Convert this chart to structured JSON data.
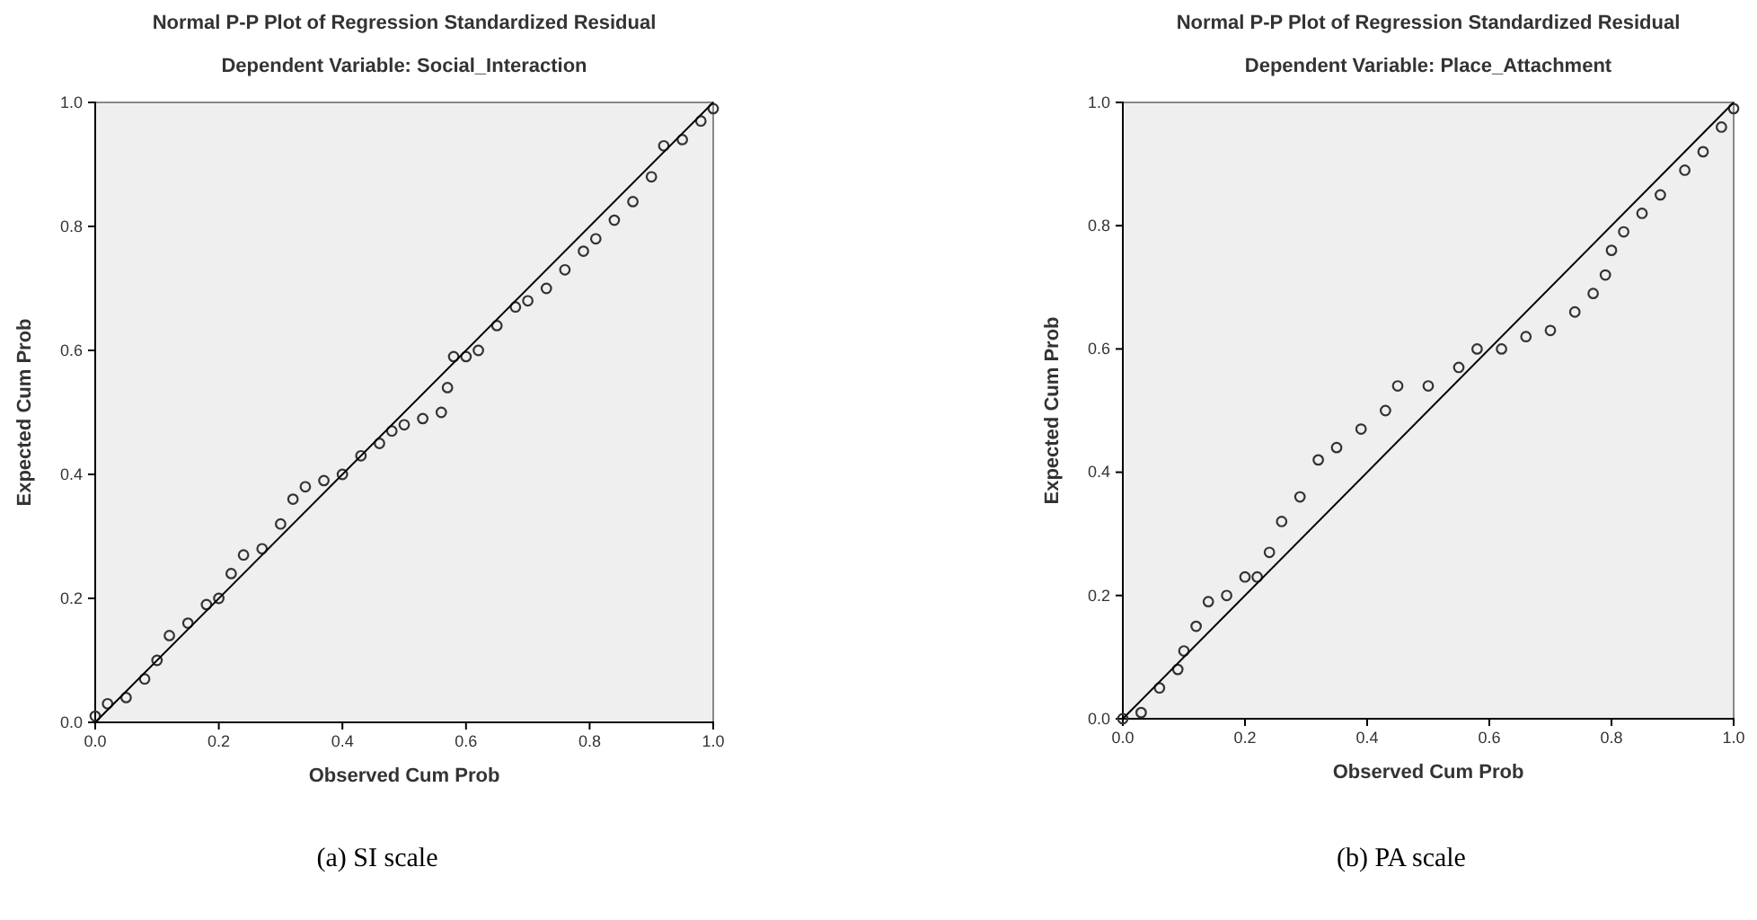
{
  "chart_data": [
    {
      "type": "scatter",
      "title": "Normal P-P Plot of Regression Standardized Residual",
      "subtitle": "Dependent Variable: Social_Interaction",
      "xlabel": "Observed Cum Prob",
      "ylabel": "Expected Cum Prob",
      "annotations": [
        "(a) SI scale"
      ],
      "xlim": [
        0,
        1
      ],
      "ylim": [
        0,
        1
      ],
      "xticks": [
        {
          "value": 0,
          "label": "0.0"
        },
        {
          "value": 0.2,
          "label": "0.2"
        },
        {
          "value": 0.4,
          "label": "0.4"
        },
        {
          "value": 0.6,
          "label": "0.6"
        },
        {
          "value": 0.8,
          "label": "0.8"
        },
        {
          "value": 1,
          "label": "1.0"
        }
      ],
      "yticks": [
        {
          "value": 0,
          "label": "0.0"
        },
        {
          "value": 0.2,
          "label": "0.2"
        },
        {
          "value": 0.4,
          "label": "0.4"
        },
        {
          "value": 0.6,
          "label": "0.6"
        },
        {
          "value": 0.8,
          "label": "0.8"
        },
        {
          "value": 1,
          "label": "1.0"
        }
      ],
      "series": [
        {
          "color": "#333333",
          "marker": "circle",
          "x": [
            0,
            0.02,
            0.05,
            0.08,
            0.1,
            0.12,
            0.15,
            0.18,
            0.2,
            0.22,
            0.24,
            0.27,
            0.3,
            0.32,
            0.34,
            0.37,
            0.4,
            0.43,
            0.46,
            0.48,
            0.5,
            0.53,
            0.56,
            0.57,
            0.58,
            0.6,
            0.62,
            0.65,
            0.68,
            0.7,
            0.73,
            0.76,
            0.79,
            0.81,
            0.84,
            0.87,
            0.9,
            0.92,
            0.95,
            0.98,
            1
          ],
          "values": [
            0.01,
            0.03,
            0.04,
            0.07,
            0.1,
            0.14,
            0.16,
            0.19,
            0.2,
            0.24,
            0.27,
            0.28,
            0.32,
            0.36,
            0.38,
            0.39,
            0.4,
            0.43,
            0.45,
            0.47,
            0.48,
            0.49,
            0.5,
            0.54,
            0.59,
            0.59,
            0.6,
            0.64,
            0.67,
            0.68,
            0.7,
            0.73,
            0.76,
            0.78,
            0.81,
            0.84,
            0.88,
            0.93,
            0.94,
            0.97,
            0.99
          ]
        },
        {
          "type": "line",
          "color": "#000000",
          "x": [
            0,
            1
          ],
          "values": [
            0,
            1
          ]
        }
      ]
    },
    {
      "type": "scatter",
      "title": "Normal P-P Plot of Regression Standardized Residual",
      "subtitle": "Dependent Variable: Place_Attachment",
      "xlabel": "Observed Cum Prob",
      "ylabel": "Expected Cum Prob",
      "annotations": [
        "(b) PA scale"
      ],
      "xlim": [
        0,
        1
      ],
      "ylim": [
        0,
        1
      ],
      "xticks": [
        {
          "value": 0,
          "label": "0.0"
        },
        {
          "value": 0.2,
          "label": "0.2"
        },
        {
          "value": 0.4,
          "label": "0.4"
        },
        {
          "value": 0.6,
          "label": "0.6"
        },
        {
          "value": 0.8,
          "label": "0.8"
        },
        {
          "value": 1,
          "label": "1.0"
        }
      ],
      "yticks": [
        {
          "value": 0,
          "label": "0.0"
        },
        {
          "value": 0.2,
          "label": "0.2"
        },
        {
          "value": 0.4,
          "label": "0.4"
        },
        {
          "value": 0.6,
          "label": "0.6"
        },
        {
          "value": 0.8,
          "label": "0.8"
        },
        {
          "value": 1,
          "label": "1.0"
        }
      ],
      "series": [
        {
          "color": "#333333",
          "marker": "circle",
          "x": [
            0,
            0.03,
            0.06,
            0.09,
            0.1,
            0.12,
            0.14,
            0.17,
            0.2,
            0.22,
            0.24,
            0.26,
            0.29,
            0.32,
            0.35,
            0.39,
            0.43,
            0.45,
            0.5,
            0.55,
            0.58,
            0.62,
            0.66,
            0.7,
            0.74,
            0.77,
            0.79,
            0.8,
            0.82,
            0.85,
            0.88,
            0.92,
            0.95,
            0.98,
            1
          ],
          "values": [
            0,
            0.01,
            0.05,
            0.08,
            0.11,
            0.15,
            0.19,
            0.2,
            0.23,
            0.23,
            0.27,
            0.32,
            0.36,
            0.42,
            0.44,
            0.47,
            0.5,
            0.54,
            0.54,
            0.57,
            0.6,
            0.6,
            0.62,
            0.63,
            0.66,
            0.69,
            0.72,
            0.76,
            0.79,
            0.82,
            0.85,
            0.89,
            0.92,
            0.96,
            0.99
          ]
        },
        {
          "type": "line",
          "color": "#000000",
          "x": [
            0,
            1
          ],
          "values": [
            0,
            1
          ]
        }
      ]
    }
  ]
}
